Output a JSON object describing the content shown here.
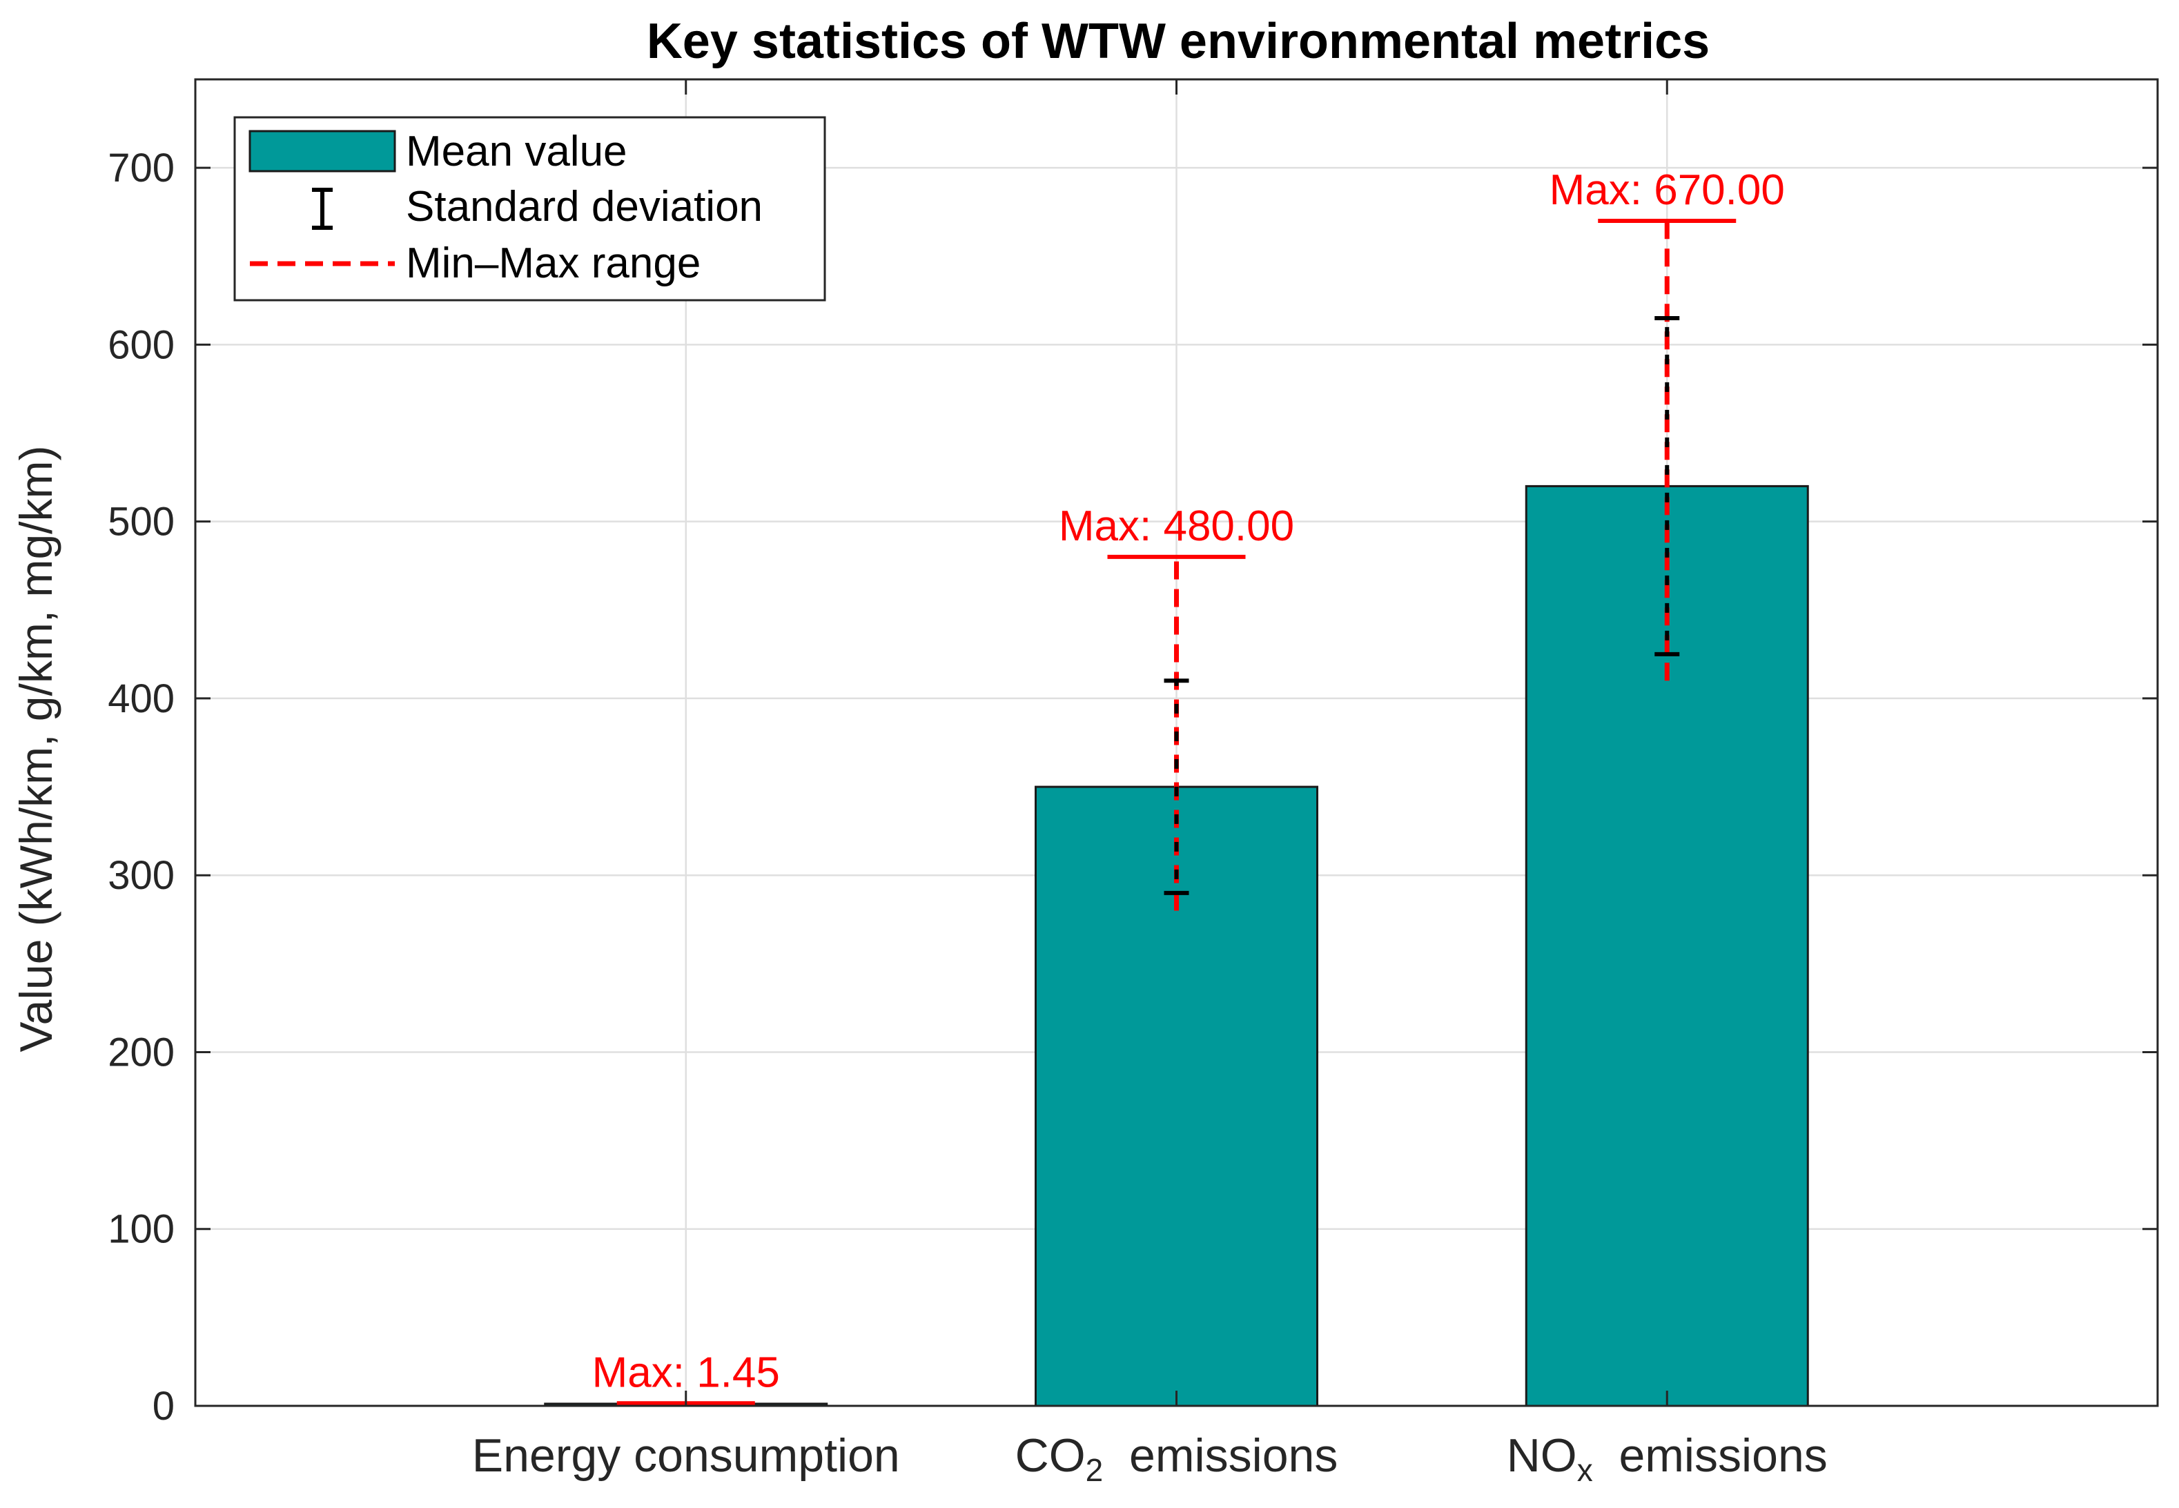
{
  "chart_data": {
    "type": "bar",
    "title": "Key statistics of WTW environmental metrics",
    "xlabel": "",
    "ylabel": "Value (kWh/km, g/km, mg/km)",
    "ylim": [
      0,
      750
    ],
    "yticks": [
      0,
      100,
      200,
      300,
      400,
      500,
      600,
      700
    ],
    "grid": true,
    "categories": [
      {
        "text": "Energy consumption",
        "sub": "",
        "suffix": ""
      },
      {
        "text": "CO",
        "sub": "2",
        "suffix": "  emissions"
      },
      {
        "text": "NO",
        "sub": "x",
        "suffix": "  emissions"
      }
    ],
    "series": [
      {
        "name": "Mean value",
        "values": [
          1.2,
          350,
          520
        ],
        "color": "#009999"
      },
      {
        "name": "Standard deviation",
        "lower": [
          1.1,
          290,
          425
        ],
        "upper": [
          1.3,
          410,
          615
        ],
        "color": "#000000"
      },
      {
        "name": "Min–Max range",
        "min": [
          0.9,
          280,
          410
        ],
        "max": [
          1.45,
          480,
          670
        ],
        "color": "#ff0000"
      }
    ],
    "annotations": [
      "Max: 1.45",
      "Max: 480.00",
      "Max: 670.00"
    ],
    "legend": {
      "position": "top-left",
      "entries": [
        "Mean value",
        "Standard deviation",
        "Min–Max range"
      ]
    }
  }
}
